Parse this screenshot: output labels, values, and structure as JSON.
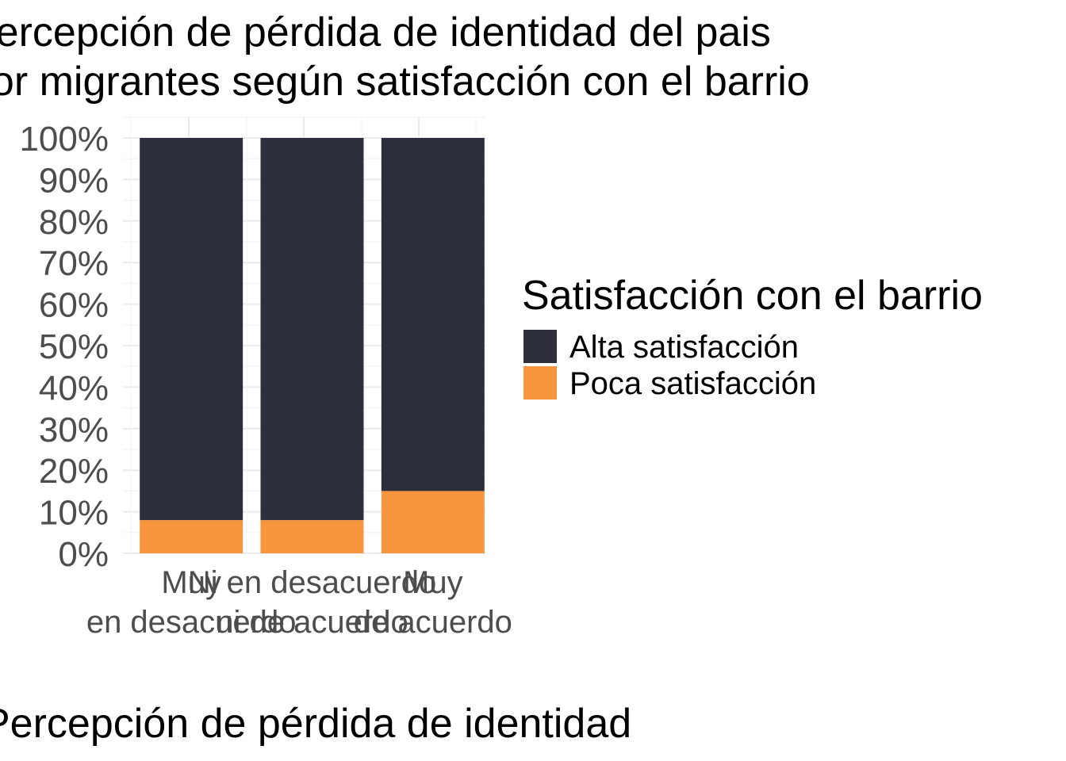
{
  "chart_data": {
    "type": "bar",
    "stacked": true,
    "percent": true,
    "title_lines": [
      "Percepción de pérdida de identidad del pais",
      "por migrantes según satisfacción con el barrio"
    ],
    "xlabel": "Percepción de pérdida de identidad",
    "ylabel": "",
    "ylim": [
      0,
      1
    ],
    "grid": true,
    "categories": [
      [
        "Muy",
        "en desacuerdo"
      ],
      [
        "Ni en desacuerdo",
        "ni de acuerdo"
      ],
      [
        "Muy",
        "de acuerdo"
      ]
    ],
    "y_ticks": [
      {
        "value": 0.0,
        "label": "0%"
      },
      {
        "value": 0.1,
        "label": "10%"
      },
      {
        "value": 0.2,
        "label": "20%"
      },
      {
        "value": 0.3,
        "label": "30%"
      },
      {
        "value": 0.4,
        "label": "40%"
      },
      {
        "value": 0.5,
        "label": "50%"
      },
      {
        "value": 0.6,
        "label": "60%"
      },
      {
        "value": 0.7,
        "label": "70%"
      },
      {
        "value": 0.8,
        "label": "80%"
      },
      {
        "value": 0.9,
        "label": "90%"
      },
      {
        "value": 1.0,
        "label": "100%"
      }
    ],
    "series": [
      {
        "name": "Alta satisfacción",
        "color": "#2d303c",
        "values": [
          0.92,
          0.92,
          0.85
        ]
      },
      {
        "name": "Poca satisfacción",
        "color": "#f8953f",
        "values": [
          0.08,
          0.08,
          0.15
        ]
      }
    ],
    "legend": {
      "title": "Satisfacción con el barrio",
      "position": "right"
    }
  }
}
